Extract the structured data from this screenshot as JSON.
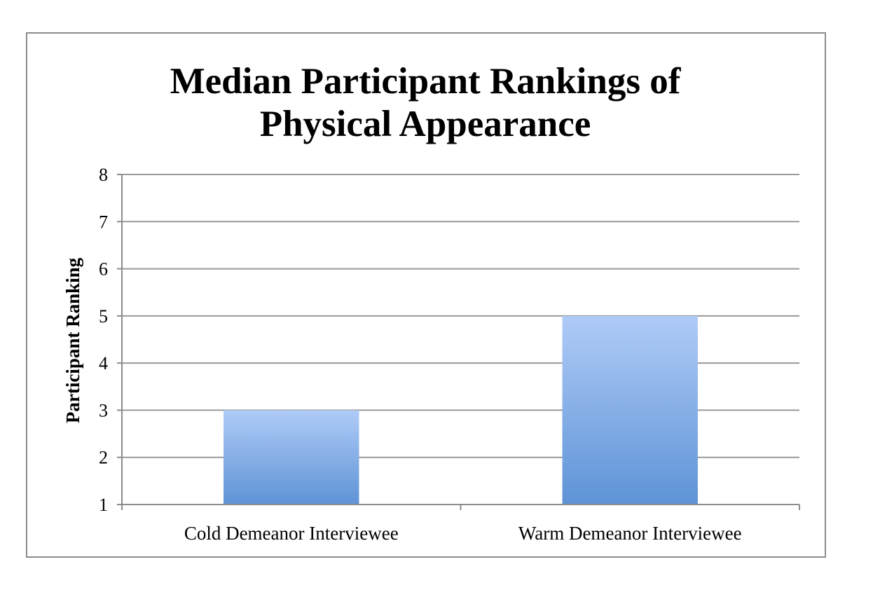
{
  "chart_data": {
    "type": "bar",
    "title_lines": [
      "Median Participant Rankings of",
      "Physical Appearance"
    ],
    "ylabel": "Participant Ranking",
    "xlabel": "",
    "categories": [
      "Cold Demeanor Interviewee",
      "Warm Demeanor Interviewee"
    ],
    "values": [
      3,
      5
    ],
    "ylim": [
      1,
      8
    ],
    "yticks": [
      1,
      2,
      3,
      4,
      5,
      6,
      7,
      8
    ],
    "grid": true,
    "legend": "none",
    "colors": {
      "bar_top": "#afcbf7",
      "bar_bottom": "#5e93d6",
      "grid": "#9a9a9a",
      "axis": "#8c8c8c"
    }
  }
}
